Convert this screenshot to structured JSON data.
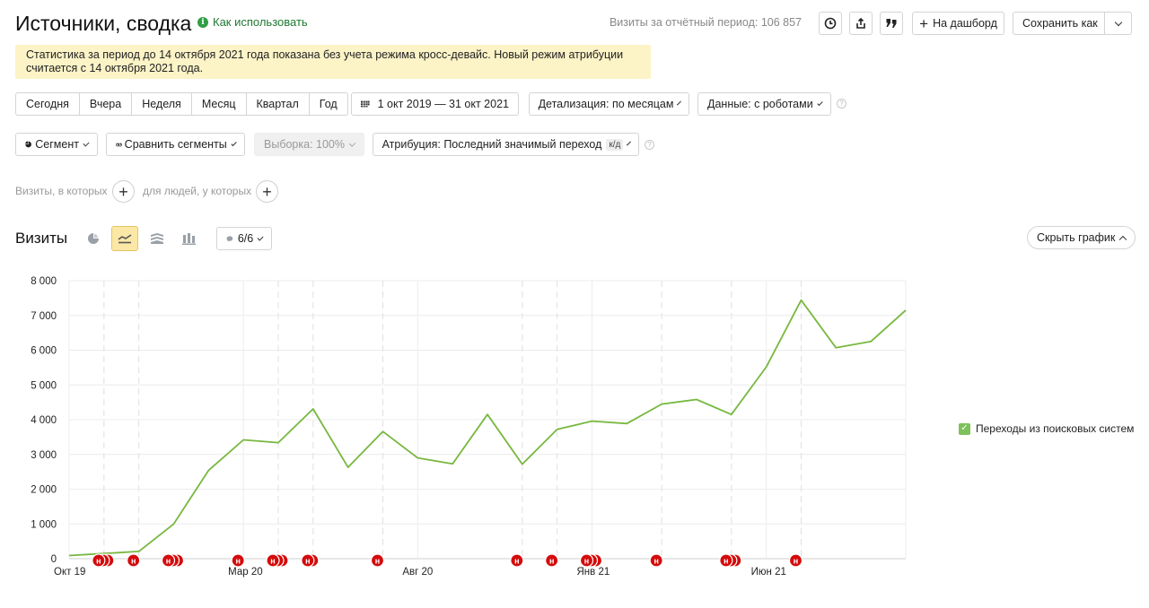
{
  "header": {
    "title": "Источники, сводка",
    "howto": "Как использовать",
    "howto_icon": "info-icon",
    "visits_total": "Визиты за отчётный период: 106 857",
    "dashboard": "На дашборд",
    "save_as": "Сохранить как"
  },
  "notice": "Статистика за период до 14 октября 2021 года показана без учета режима кросс-девайс. Новый режим атрибуции считается с 14 октября 2021 года.",
  "periods": [
    "Сегодня",
    "Вчера",
    "Неделя",
    "Месяц",
    "Квартал",
    "Год"
  ],
  "toolbar": {
    "date_range": "1 окт 2019 — 31 окт 2021",
    "detail": "Детализация: по месяцам",
    "data": "Данные: с роботами",
    "segment": "Сегмент",
    "compare": "Сравнить сегменты",
    "sample": "Выборка: 100%",
    "attribution": "Атрибуция: Последний значимый переход",
    "attribution_badge": "к/д"
  },
  "conditions": {
    "visits_where": "Визиты, в которых",
    "people_where": "для людей, у которых"
  },
  "chart_header": {
    "title": "Визиты",
    "annotations": "6/6",
    "hide": "Скрыть график"
  },
  "colors": {
    "line": "#77b83f",
    "marker": "#d40b0b",
    "notice_bg": "#fcf3c7",
    "link": "#1f7a32"
  },
  "chart_data": {
    "type": "line",
    "title": "",
    "xlabel": "",
    "ylabel": "",
    "ylim": [
      0,
      8000
    ],
    "yticks": [
      "0",
      "1 000",
      "2 000",
      "3 000",
      "4 000",
      "5 000",
      "6 000",
      "7 000",
      "8 000"
    ],
    "xtick_labels": [
      {
        "label": "Окт 19",
        "index": 0
      },
      {
        "label": "Мар 20",
        "index": 5
      },
      {
        "label": "Авг 20",
        "index": 10
      },
      {
        "label": "Янв 21",
        "index": 15
      },
      {
        "label": "Июн 21",
        "index": 20
      }
    ],
    "series": [
      {
        "name": "Переходы из поисковых систем",
        "values": [
          90,
          150,
          210,
          1000,
          2540,
          3420,
          3340,
          4310,
          2630,
          3660,
          2900,
          2730,
          4150,
          2720,
          3720,
          3960,
          3890,
          4450,
          4580,
          4150,
          5520,
          7440,
          6070,
          6250,
          7150
        ]
      }
    ],
    "annotation_markers": [
      {
        "position": 1,
        "count": 3,
        "label": "н"
      },
      {
        "position": 2,
        "count": 1,
        "label": "н"
      },
      {
        "position": 3,
        "count": 3,
        "label": "н"
      },
      {
        "position": 5,
        "count": 1,
        "label": "н"
      },
      {
        "position": 6,
        "count": 3,
        "label": "н"
      },
      {
        "position": 7,
        "count": 2,
        "label": "н"
      },
      {
        "position": 9,
        "count": 1,
        "label": "н"
      },
      {
        "position": 13,
        "count": 1,
        "label": "н"
      },
      {
        "position": 14,
        "count": 1,
        "label": "н"
      },
      {
        "position": 15,
        "count": 3,
        "label": "н"
      },
      {
        "position": 17,
        "count": 1,
        "label": "н"
      },
      {
        "position": 19,
        "count": 3,
        "label": "н"
      },
      {
        "position": 21,
        "count": 1,
        "label": "н"
      }
    ],
    "dashed_months": [
      1,
      2,
      6,
      7,
      9,
      13,
      14,
      17,
      19,
      21
    ],
    "grid": true,
    "legend": "right"
  }
}
